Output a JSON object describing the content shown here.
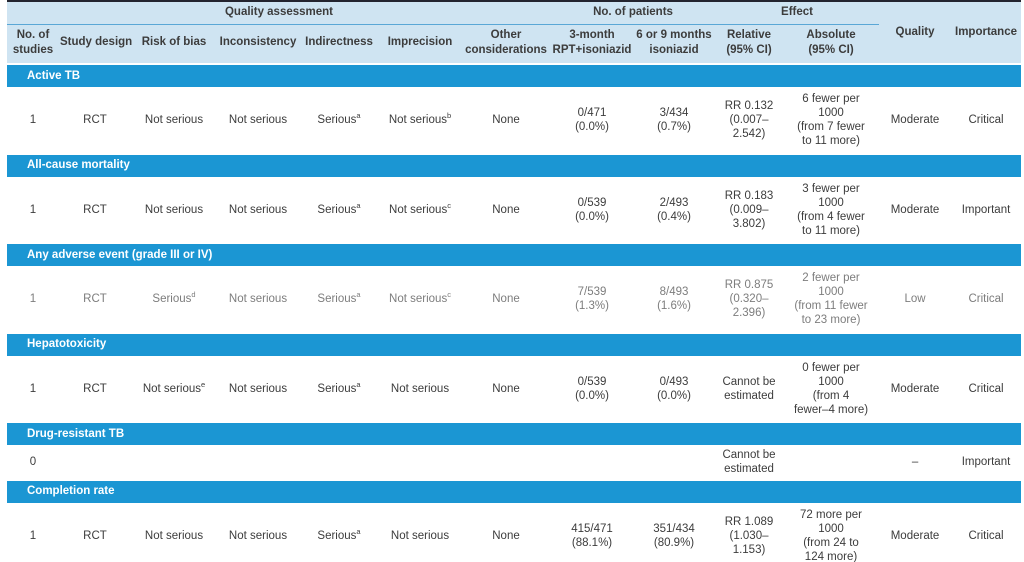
{
  "colors": {
    "accent_blue": "#1b96d3",
    "header_bg": "#cfe4f2",
    "header_rule": "#5aa7d6",
    "top_border": "#23242f",
    "bottom_border": "#74b6de",
    "text": "#3c3c3c",
    "muted_text": "#7d7d7d"
  },
  "table": {
    "header": {
      "groups": [
        {
          "label": "Quality assessment",
          "span": 7
        },
        {
          "label": "No. of patients",
          "span": 2
        },
        {
          "label": "Effect",
          "span": 2
        }
      ],
      "subcolumns": [
        "No. of\nstudies",
        "Study design",
        "Risk of bias",
        "Inconsistency",
        "Indirectness",
        "Imprecision",
        "Other\nconsiderations",
        "3-month\nRPT+isoniazid",
        "6 or 9 months\nisoniazid",
        "Relative\n(95% CI)",
        "Absolute\n(95% CI)"
      ],
      "spanning_columns": [
        "Quality",
        "Importance"
      ]
    },
    "sections": [
      {
        "title": "Active TB",
        "rows": [
          {
            "cells": [
              "1",
              "RCT",
              "Not serious",
              "Not serious",
              {
                "text": "Serious",
                "sup": "a"
              },
              {
                "text": "Not serious",
                "sup": "b"
              },
              "None",
              "0/471\n(0.0%)",
              "3/434\n(0.7%)",
              "RR 0.132\n(0.007–\n2.542)",
              "6 fewer per\n1000\n(from 7 fewer\nto 11 more)",
              "Moderate",
              "Critical"
            ]
          }
        ]
      },
      {
        "title": "All-cause mortality",
        "rows": [
          {
            "cells": [
              "1",
              "RCT",
              "Not serious",
              "Not serious",
              {
                "text": "Serious",
                "sup": "a"
              },
              {
                "text": "Not serious",
                "sup": "c"
              },
              "None",
              "0/539\n(0.0%)",
              "2/493\n(0.4%)",
              "RR 0.183\n(0.009–\n3.802)",
              "3 fewer per\n1000\n(from 4 fewer\nto 11 more)",
              "Moderate",
              "Important"
            ]
          }
        ]
      },
      {
        "title": "Any adverse event (grade III or IV)",
        "rows": [
          {
            "muted": true,
            "cells": [
              "1",
              "RCT",
              {
                "text": "Serious",
                "sup": "d"
              },
              "Not serious",
              {
                "text": "Serious",
                "sup": "a"
              },
              {
                "text": "Not serious",
                "sup": "c"
              },
              "None",
              "7/539\n(1.3%)",
              "8/493\n(1.6%)",
              "RR 0.875\n(0.320–\n2.396)",
              "2 fewer per\n1000\n(from 11 fewer\nto 23 more)",
              "Low",
              "Critical"
            ]
          }
        ]
      },
      {
        "title": "Hepatotoxicity",
        "rows": [
          {
            "cells": [
              "1",
              "RCT",
              {
                "text": "Not serious",
                "sup": "e"
              },
              "Not serious",
              {
                "text": "Serious",
                "sup": "a"
              },
              "Not serious",
              "None",
              "0/539\n(0.0%)",
              "0/493\n(0.0%)",
              "Cannot be\nestimated",
              "0 fewer per\n1000\n(from 4\nfewer–4 more)",
              "Moderate",
              "Critical"
            ]
          }
        ]
      },
      {
        "title": "Drug-resistant TB",
        "rows": [
          {
            "compact": true,
            "cells": [
              "0",
              "",
              "",
              "",
              "",
              "",
              "",
              "",
              "",
              "Cannot be\nestimated",
              "",
              "–",
              "Important"
            ]
          }
        ]
      },
      {
        "title": "Completion rate",
        "rows": [
          {
            "cells": [
              "1",
              "RCT",
              "Not serious",
              "Not serious",
              {
                "text": "Serious",
                "sup": "a"
              },
              "Not serious",
              "None",
              "415/471\n(88.1%)",
              "351/434\n(80.9%)",
              "RR 1.089\n(1.030–\n1.153)",
              "72 more per\n1000\n(from 24 to\n124 more)",
              "Moderate",
              "Critical"
            ]
          }
        ]
      }
    ]
  }
}
